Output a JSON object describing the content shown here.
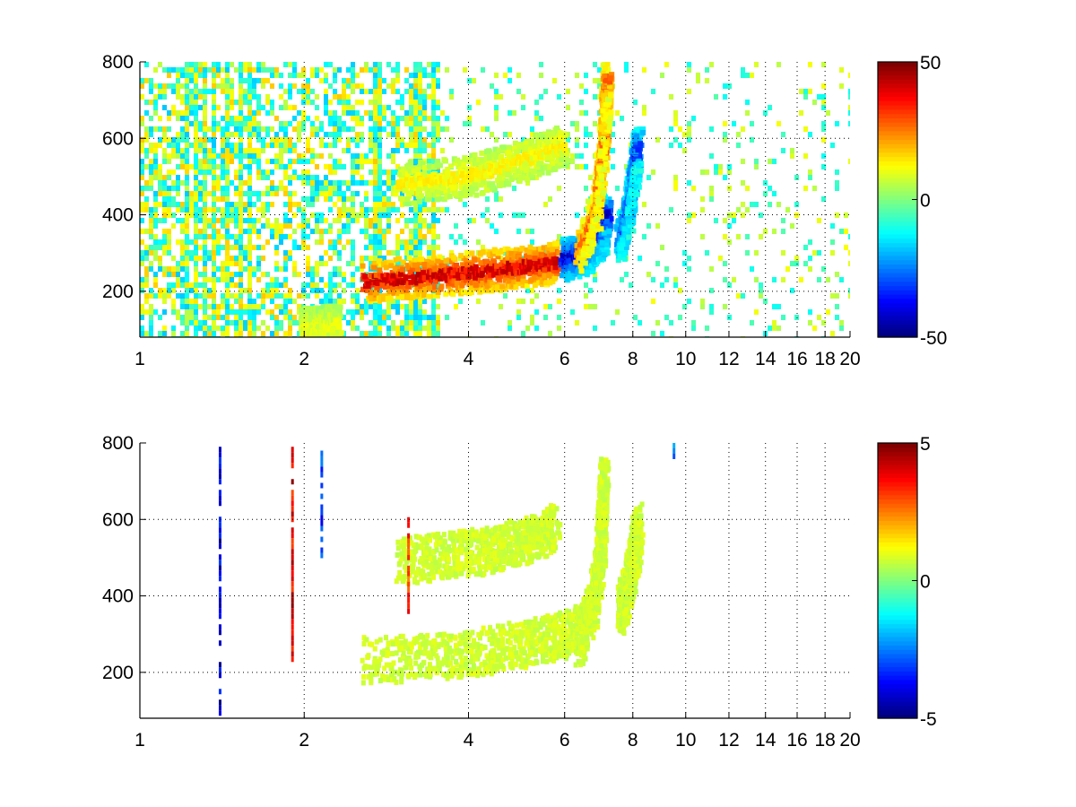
{
  "chart_data": [
    {
      "type": "heatmap",
      "title": "",
      "xlabel": "",
      "ylabel": "",
      "x_scale": "log",
      "xlim": [
        1,
        20
      ],
      "ylim": [
        80,
        800
      ],
      "x_ticks": [
        1,
        2,
        4,
        6,
        8,
        10,
        12,
        14,
        16,
        18,
        20
      ],
      "x_tick_labels": [
        "1",
        "2",
        "4",
        "6",
        "8",
        "10",
        "12",
        "14",
        "16",
        "18",
        "20"
      ],
      "y_ticks": [
        200,
        400,
        600,
        800
      ],
      "y_tick_labels": [
        "200",
        "400",
        "600",
        "800"
      ],
      "grid": true,
      "colormap": "jet",
      "clim": [
        -50,
        50
      ],
      "colorbar_ticks": [
        -50,
        0,
        50
      ],
      "colorbar_tick_labels": [
        "-50",
        "0",
        "50"
      ],
      "features": [
        {
          "kind": "ridge",
          "value": 45,
          "points": [
            [
              2.6,
              225
            ],
            [
              3.5,
              240
            ],
            [
              4.5,
              255
            ],
            [
              5.8,
              275
            ]
          ]
        },
        {
          "kind": "ridge",
          "value": -45,
          "points": [
            [
              6.0,
              280
            ],
            [
              6.6,
              300
            ],
            [
              7.0,
              340
            ],
            [
              7.2,
              400
            ]
          ]
        },
        {
          "kind": "ridge",
          "value": 30,
          "points": [
            [
              6.4,
              300
            ],
            [
              6.9,
              420
            ],
            [
              7.1,
              600
            ],
            [
              7.2,
              760
            ]
          ]
        },
        {
          "kind": "ridge",
          "value": -35,
          "points": [
            [
              7.6,
              330
            ],
            [
              7.9,
              420
            ],
            [
              8.1,
              530
            ],
            [
              8.2,
              580
            ]
          ]
        },
        {
          "kind": "ridge",
          "value": 15,
          "points": [
            [
              3.0,
              480
            ],
            [
              4.0,
              500
            ],
            [
              5.0,
              540
            ],
            [
              6.0,
              580
            ]
          ]
        },
        {
          "kind": "ridge",
          "value": 12,
          "points": [
            [
              2.0,
              100
            ],
            [
              2.3,
              110
            ]
          ]
        }
      ]
    },
    {
      "type": "heatmap",
      "title": "",
      "xlabel": "",
      "ylabel": "",
      "x_scale": "log",
      "xlim": [
        1,
        20
      ],
      "ylim": [
        80,
        800
      ],
      "x_ticks": [
        1,
        2,
        4,
        6,
        8,
        10,
        12,
        14,
        16,
        18,
        20
      ],
      "x_tick_labels": [
        "1",
        "2",
        "4",
        "6",
        "8",
        "10",
        "12",
        "14",
        "16",
        "18",
        "20"
      ],
      "y_ticks": [
        200,
        400,
        600,
        800
      ],
      "y_tick_labels": [
        "200",
        "400",
        "600",
        "800"
      ],
      "grid": true,
      "colormap": "jet",
      "clim": [
        -5,
        5
      ],
      "colorbar_ticks": [
        -5,
        0,
        5
      ],
      "colorbar_tick_labels": [
        "-5",
        "0",
        "5"
      ],
      "features": [
        {
          "kind": "band",
          "value": 0.8,
          "points": [
            [
              2.6,
              230
            ],
            [
              3.5,
              240
            ],
            [
              4.5,
              260
            ],
            [
              5.8,
              290
            ],
            [
              6.5,
              320
            ]
          ]
        },
        {
          "kind": "band",
          "value": 0.8,
          "points": [
            [
              6.4,
              280
            ],
            [
              6.8,
              380
            ],
            [
              7.0,
              520
            ],
            [
              7.1,
              700
            ]
          ]
        },
        {
          "kind": "band",
          "value": 0.8,
          "points": [
            [
              7.6,
              360
            ],
            [
              7.9,
              440
            ],
            [
              8.1,
              520
            ],
            [
              8.2,
              580
            ]
          ]
        },
        {
          "kind": "band",
          "value": 0.8,
          "points": [
            [
              3.0,
              490
            ],
            [
              4.0,
              510
            ],
            [
              5.0,
              540
            ],
            [
              5.8,
              580
            ]
          ]
        },
        {
          "kind": "spike",
          "value": -5,
          "points": [
            [
              1.4,
              90
            ],
            [
              1.4,
              790
            ]
          ]
        },
        {
          "kind": "spike",
          "value": 5,
          "points": [
            [
              1.9,
              200
            ],
            [
              1.9,
              790
            ]
          ]
        },
        {
          "kind": "spike",
          "value": -4,
          "points": [
            [
              2.15,
              500
            ],
            [
              2.15,
              780
            ]
          ]
        },
        {
          "kind": "spike",
          "value": 4,
          "points": [
            [
              3.1,
              350
            ],
            [
              3.1,
              620
            ]
          ]
        },
        {
          "kind": "spike",
          "value": -3,
          "points": [
            [
              9.5,
              750
            ],
            [
              9.5,
              800
            ]
          ]
        }
      ]
    }
  ]
}
